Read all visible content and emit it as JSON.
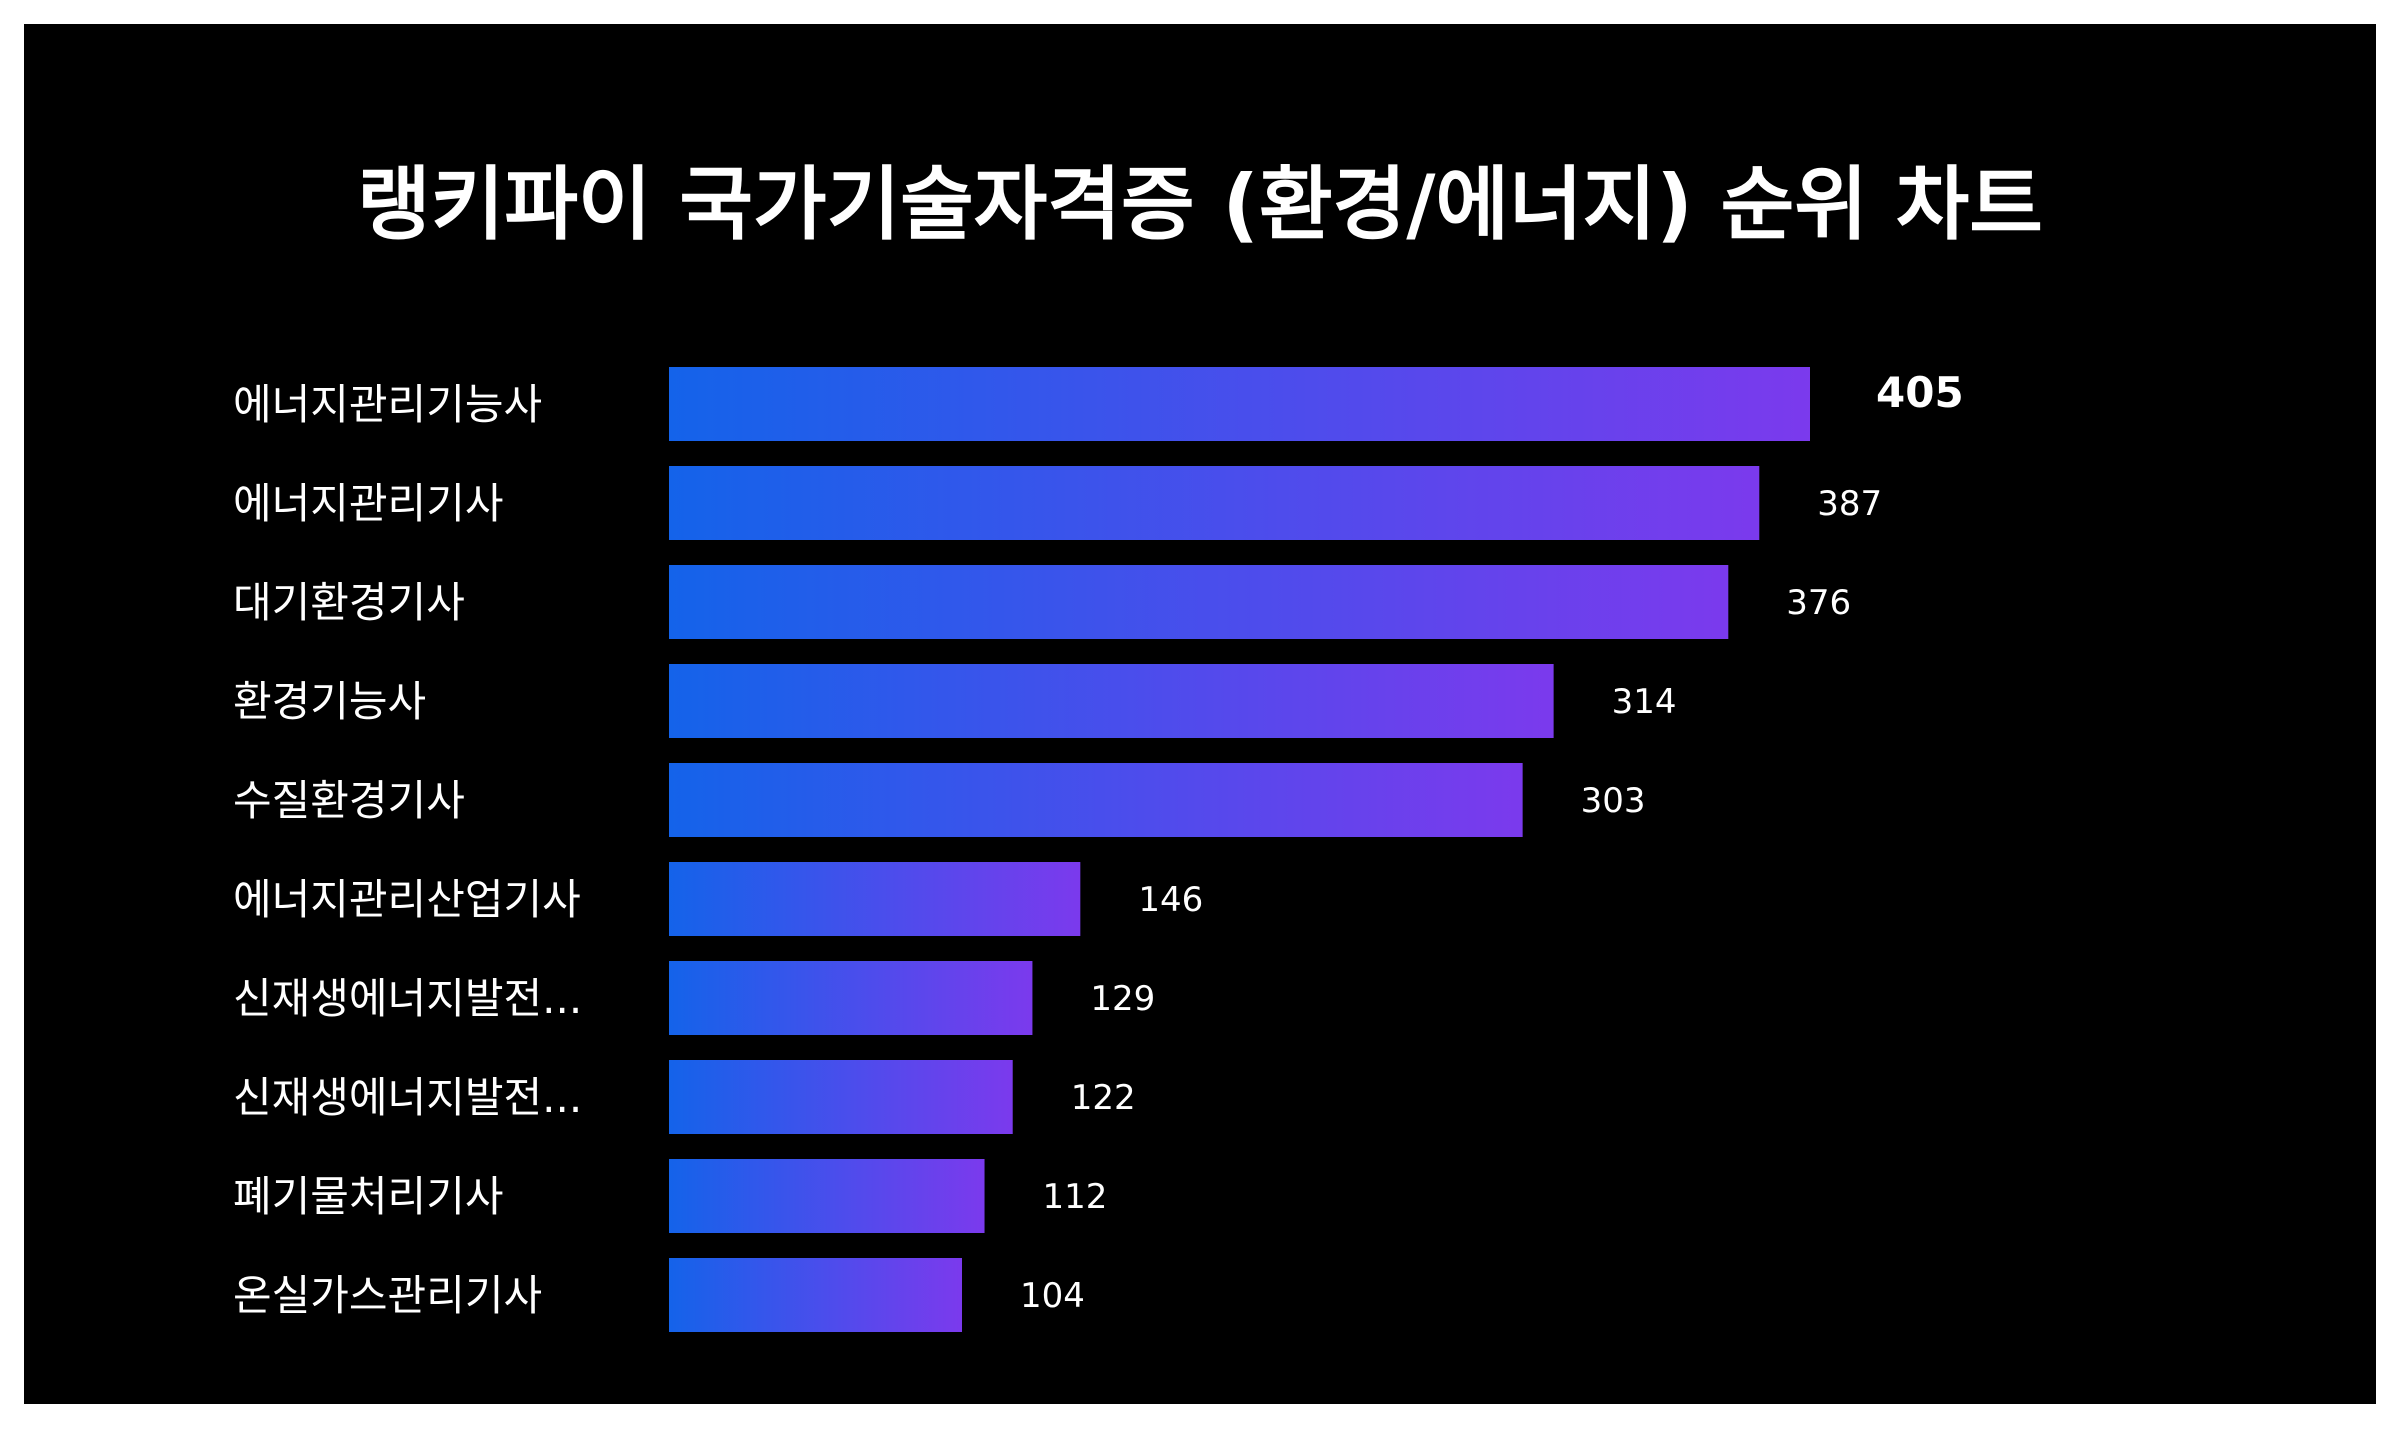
{
  "chart_data": {
    "type": "bar",
    "orientation": "horizontal",
    "title": "랭키파이 국가기술자격증 (환경/에너지) 순위 차트",
    "categories": [
      "에너지관리기능사",
      "에너지관리기사",
      "대기환경기사",
      "환경기능사",
      "수질환경기사",
      "에너지관리산업기사",
      "신재생에너지발전...",
      "신재생에너지발전...",
      "폐기물처리기사",
      "온실가스관리기사"
    ],
    "values": [
      405,
      387,
      376,
      314,
      303,
      146,
      129,
      122,
      112,
      104
    ],
    "xlabel": "",
    "ylabel": "",
    "xlim": [
      0,
      405
    ],
    "grid": false,
    "colors": {
      "background": "#000000",
      "bar_start": "#1463ea",
      "bar_end": "#7b3aed",
      "text": "#ffffff"
    }
  }
}
